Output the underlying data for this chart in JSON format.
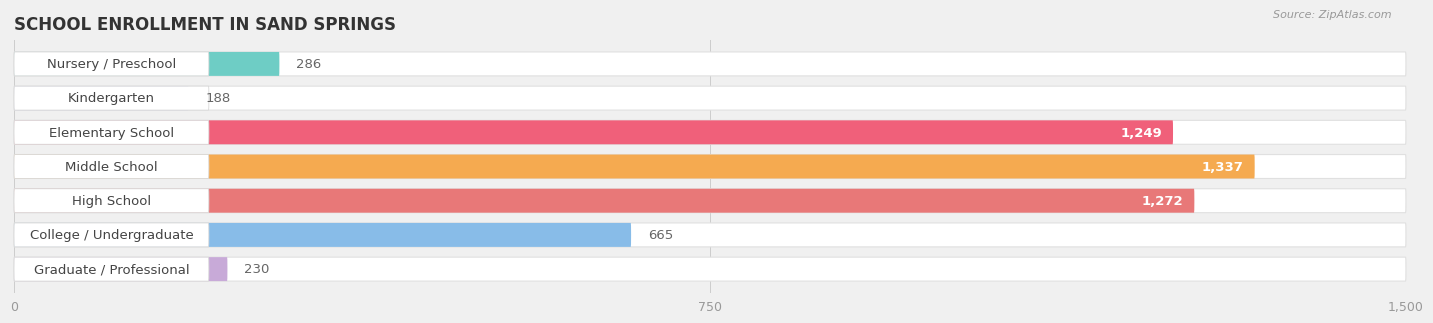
{
  "title": "SCHOOL ENROLLMENT IN SAND SPRINGS",
  "source": "Source: ZipAtlas.com",
  "categories": [
    "Nursery / Preschool",
    "Kindergarten",
    "Elementary School",
    "Middle School",
    "High School",
    "College / Undergraduate",
    "Graduate / Professional"
  ],
  "values": [
    286,
    188,
    1249,
    1337,
    1272,
    665,
    230
  ],
  "bar_colors": [
    "#6ecdc5",
    "#aaaade",
    "#f0607a",
    "#f5aa50",
    "#e87878",
    "#88bce8",
    "#c8aad8"
  ],
  "xlim": [
    0,
    1500
  ],
  "xticks": [
    0,
    750,
    1500
  ],
  "title_fontsize": 12,
  "label_fontsize": 9.5,
  "value_fontsize": 9.5,
  "bg_color": "#f0f0f0",
  "bar_bg_color": "#ffffff",
  "row_bg_color": "#f7f7f7"
}
